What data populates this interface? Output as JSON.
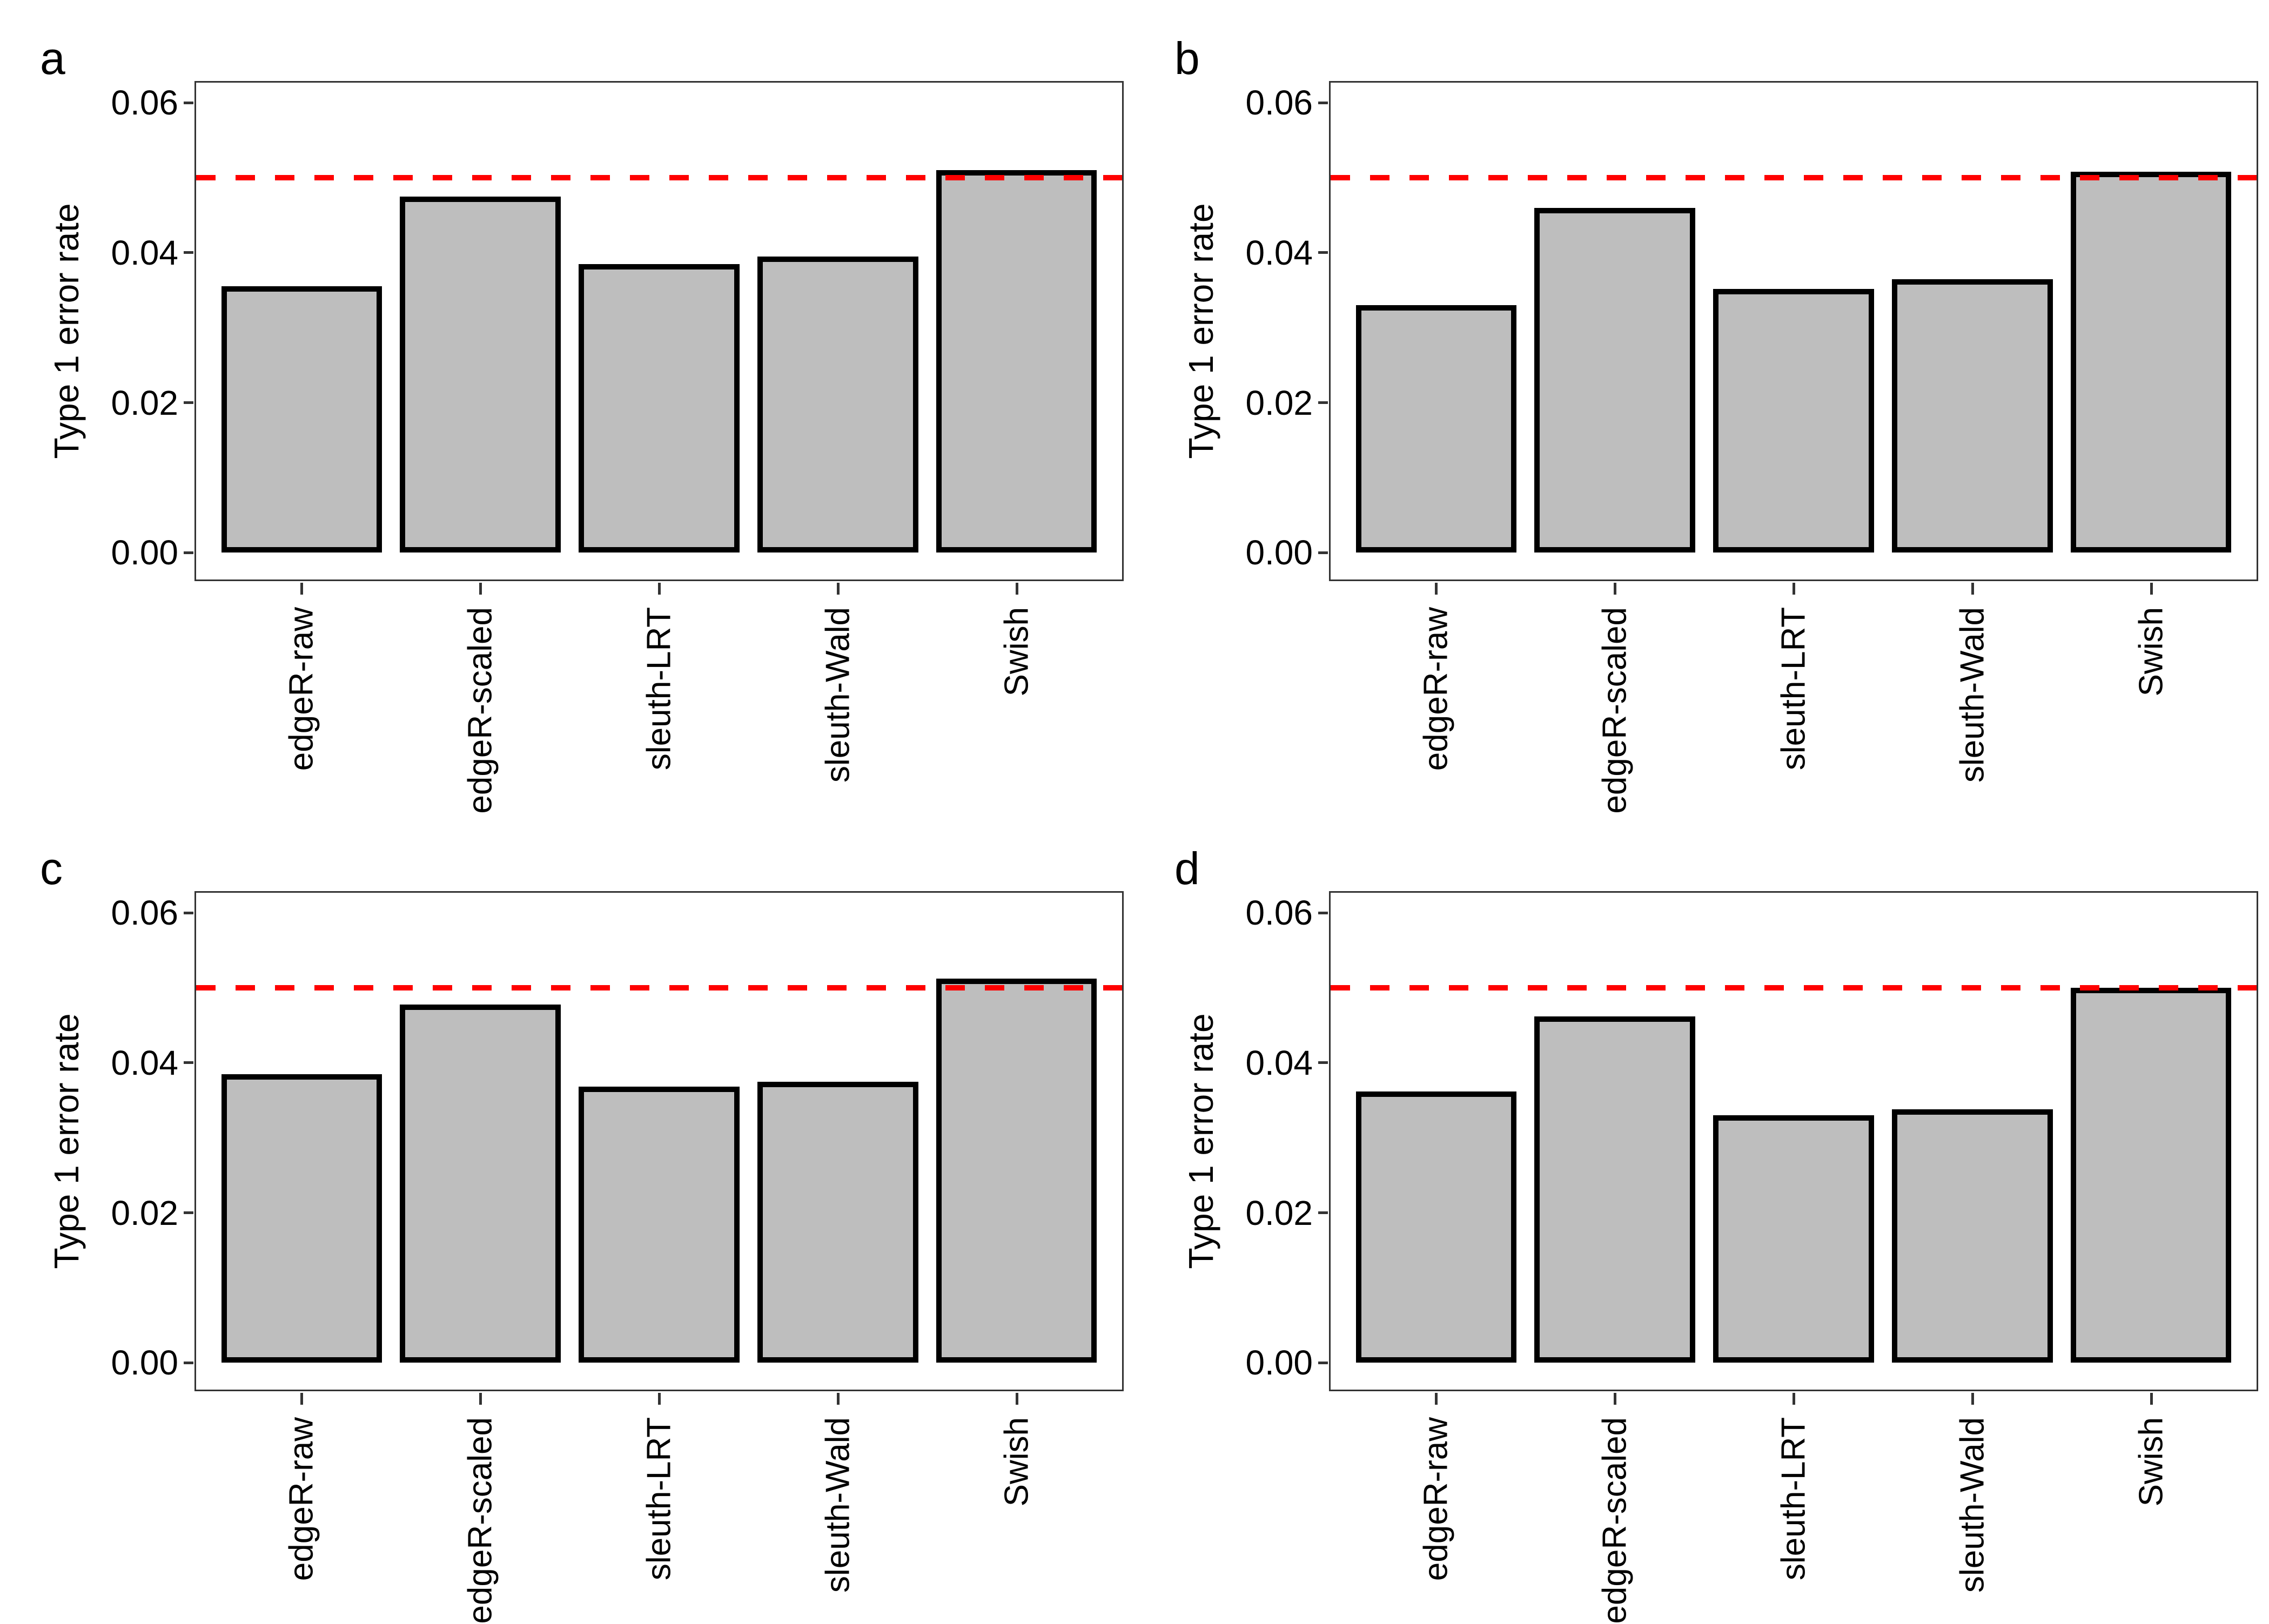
{
  "figure": {
    "kind": "2x2-panel-bar-figure",
    "background": "#ffffff"
  },
  "style": {
    "bar_fill": "#bebebe",
    "bar_stroke": "#000000",
    "threshold_red": "#ff0000",
    "panel_border": "#333333",
    "text_color": "#000000"
  },
  "chart_data": [
    {
      "type": "bar",
      "panel_label": "a",
      "categories": [
        "edgeR-raw",
        "edgeR-scaled",
        "sleuth-LRT",
        "sleuth-Wald",
        "Swish"
      ],
      "values": [
        0.0355,
        0.0475,
        0.0385,
        0.0395,
        0.051
      ],
      "title": "",
      "xlabel": "",
      "ylabel": "Type 1 error rate",
      "ytick_labels": [
        "0.00",
        "0.02",
        "0.04",
        "0.06"
      ],
      "ytick_values": [
        0,
        0.02,
        0.04,
        0.06
      ],
      "ylim": [
        -0.0038,
        0.0629
      ],
      "grid": false,
      "legend": "none",
      "x_label_rotation": 90,
      "threshold": {
        "value": 0.05,
        "color": "#ff0000",
        "style": "dashed"
      }
    },
    {
      "type": "bar",
      "panel_label": "b",
      "categories": [
        "edgeR-raw",
        "edgeR-scaled",
        "sleuth-LRT",
        "sleuth-Wald",
        "Swish"
      ],
      "values": [
        0.033,
        0.046,
        0.0352,
        0.0365,
        0.0508
      ],
      "title": "",
      "xlabel": "",
      "ylabel": "Type 1 error rate",
      "ytick_labels": [
        "0.00",
        "0.02",
        "0.04",
        "0.06"
      ],
      "ytick_values": [
        0,
        0.02,
        0.04,
        0.06
      ],
      "ylim": [
        -0.0038,
        0.0629
      ],
      "grid": false,
      "legend": "none",
      "x_label_rotation": 90,
      "threshold": {
        "value": 0.05,
        "color": "#ff0000",
        "style": "dashed"
      }
    },
    {
      "type": "bar",
      "panel_label": "c",
      "categories": [
        "edgeR-raw",
        "edgeR-scaled",
        "sleuth-LRT",
        "sleuth-Wald",
        "Swish"
      ],
      "values": [
        0.0385,
        0.0478,
        0.0368,
        0.0375,
        0.0512
      ],
      "title": "",
      "xlabel": "",
      "ylabel": "Type 1 error rate",
      "ytick_labels": [
        "0.00",
        "0.02",
        "0.04",
        "0.06"
      ],
      "ytick_values": [
        0,
        0.02,
        0.04,
        0.06
      ],
      "ylim": [
        -0.0038,
        0.0629
      ],
      "grid": false,
      "legend": "none",
      "x_label_rotation": 90,
      "threshold": {
        "value": 0.05,
        "color": "#ff0000",
        "style": "dashed"
      }
    },
    {
      "type": "bar",
      "panel_label": "d",
      "categories": [
        "edgeR-raw",
        "edgeR-scaled",
        "sleuth-LRT",
        "sleuth-Wald",
        "Swish"
      ],
      "values": [
        0.0362,
        0.0462,
        0.033,
        0.0338,
        0.05
      ],
      "title": "",
      "xlabel": "",
      "ylabel": "Type 1 error rate",
      "ytick_labels": [
        "0.00",
        "0.02",
        "0.04",
        "0.06"
      ],
      "ytick_values": [
        0,
        0.02,
        0.04,
        0.06
      ],
      "ylim": [
        -0.0038,
        0.0629
      ],
      "grid": false,
      "legend": "none",
      "x_label_rotation": 90,
      "threshold": {
        "value": 0.05,
        "color": "#ff0000",
        "style": "dashed"
      }
    }
  ]
}
